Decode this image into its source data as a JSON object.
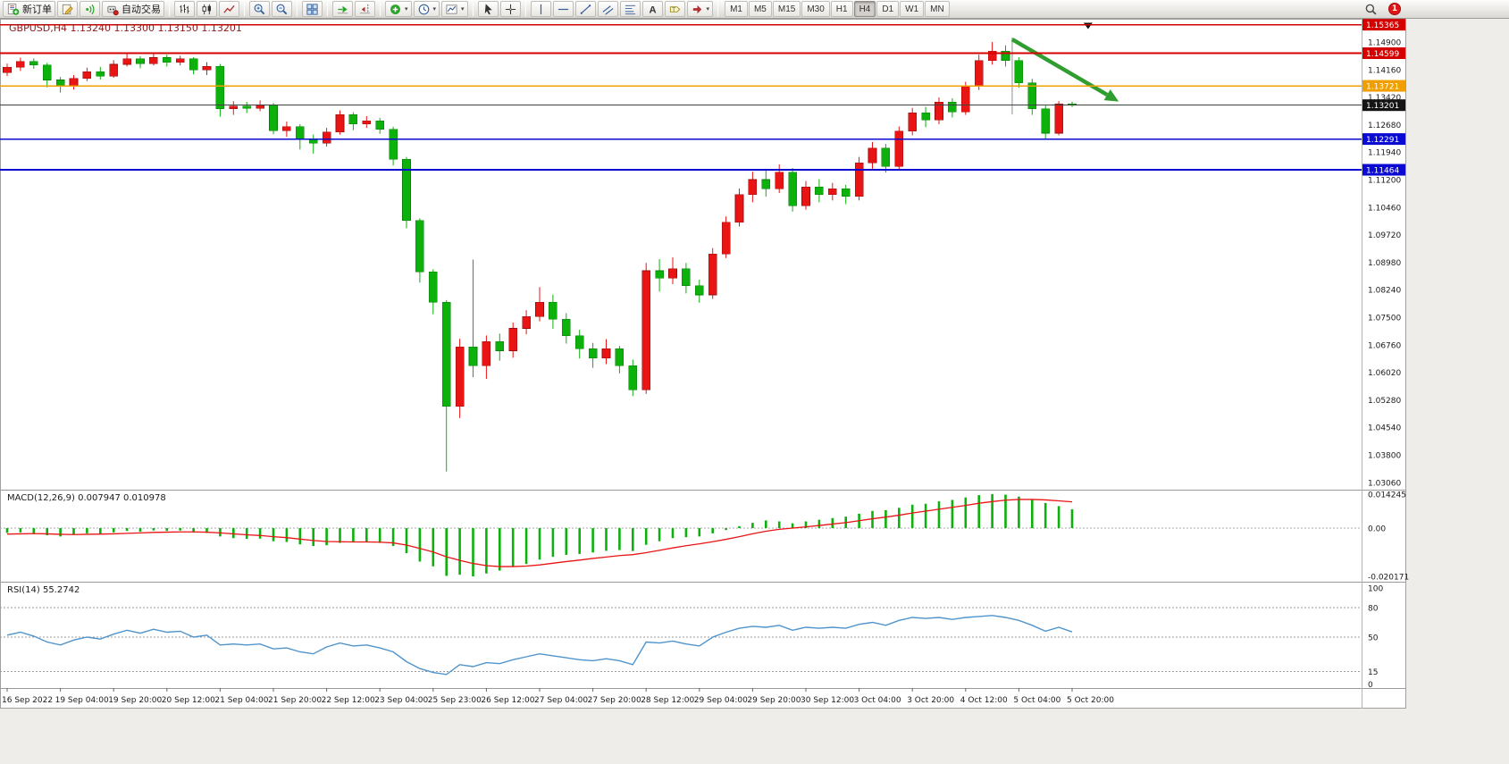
{
  "toolbar": {
    "new_order_label": "新订单",
    "autotrading_label": "自动交易",
    "timeframes": [
      "M1",
      "M5",
      "M15",
      "M30",
      "H1",
      "H4",
      "D1",
      "W1",
      "MN"
    ],
    "active_timeframe": "H4",
    "notification_count": "1",
    "icon_names": [
      "new-order",
      "metaeditor",
      "signals",
      "autotrading",
      "bar-chart",
      "candlestick-chart",
      "line-chart",
      "zoom-in",
      "zoom-out",
      "tile-windows",
      "auto-scroll",
      "chart-shift",
      "add-indicator",
      "periods",
      "templates",
      "cursor",
      "crosshair",
      "vertical-line",
      "horizontal-line",
      "trendline",
      "equidistant-channel",
      "fibonacci-retracement",
      "text",
      "text-label",
      "arrows",
      "search"
    ]
  },
  "chart": {
    "title": "GBPUSD,H4 1.13240 1.13300 1.13150 1.13201",
    "symbol": "GBPUSD",
    "period": "H4",
    "open": "1.13240",
    "high": "1.13300",
    "low": "1.13150",
    "close": "1.13201"
  },
  "chart_data": {
    "type": "candlestick",
    "symbol": "GBPUSD",
    "timeframe": "H4",
    "up_color": "#e91414",
    "down_color": "#0cb10c",
    "price_axis_labels": [
      "1.14900",
      "1.14160",
      "1.13420",
      "1.12680",
      "1.11940",
      "1.11200",
      "1.10460",
      "1.09720",
      "1.08980",
      "1.08240",
      "1.07500",
      "1.06760",
      "1.06020",
      "1.05280",
      "1.04540",
      "1.03800",
      "1.03060"
    ],
    "time_axis_labels": [
      "16 Sep 2022",
      "19 Sep 04:00",
      "19 Sep 20:00",
      "20 Sep 12:00",
      "21 Sep 04:00",
      "21 Sep 20:00",
      "22 Sep 12:00",
      "23 Sep 04:00",
      "25 Sep 23:00",
      "26 Sep 12:00",
      "27 Sep 04:00",
      "27 Sep 20:00",
      "28 Sep 12:00",
      "29 Sep 04:00",
      "29 Sep 20:00",
      "30 Sep 12:00",
      "3 Oct 04:00",
      "3 Oct 20:00",
      "4 Oct 12:00",
      "5 Oct 04:00",
      "5 Oct 20:00"
    ],
    "candles_ohlc": [
      [
        1.1408,
        1.1432,
        1.1398,
        1.1422
      ],
      [
        1.1422,
        1.1448,
        1.1412,
        1.1438
      ],
      [
        1.1438,
        1.1446,
        1.1418,
        1.1428
      ],
      [
        1.1428,
        1.1434,
        1.1368,
        1.1388
      ],
      [
        1.1388,
        1.1396,
        1.1354,
        1.137
      ],
      [
        1.137,
        1.1401,
        1.1362,
        1.1392
      ],
      [
        1.1392,
        1.1421,
        1.1385,
        1.141
      ],
      [
        1.141,
        1.1423,
        1.1389,
        1.1398
      ],
      [
        1.1398,
        1.1441,
        1.1394,
        1.143
      ],
      [
        1.143,
        1.1458,
        1.1424,
        1.1445
      ],
      [
        1.1445,
        1.1452,
        1.1419,
        1.1432
      ],
      [
        1.1432,
        1.1461,
        1.1427,
        1.1448
      ],
      [
        1.1448,
        1.1456,
        1.1424,
        1.1435
      ],
      [
        1.1435,
        1.1453,
        1.1427,
        1.1445
      ],
      [
        1.1445,
        1.1449,
        1.1403,
        1.1415
      ],
      [
        1.1415,
        1.1436,
        1.1401,
        1.1425
      ],
      [
        1.1425,
        1.1431,
        1.1289,
        1.131
      ],
      [
        1.131,
        1.1331,
        1.1294,
        1.1318
      ],
      [
        1.1318,
        1.1329,
        1.1299,
        1.1312
      ],
      [
        1.1312,
        1.1333,
        1.1304,
        1.132
      ],
      [
        1.132,
        1.1326,
        1.1242,
        1.1252
      ],
      [
        1.1252,
        1.1276,
        1.1235,
        1.1262
      ],
      [
        1.1262,
        1.1269,
        1.1201,
        1.123
      ],
      [
        1.123,
        1.1241,
        1.119,
        1.1218
      ],
      [
        1.1218,
        1.1259,
        1.1209,
        1.1248
      ],
      [
        1.1248,
        1.1306,
        1.1241,
        1.1295
      ],
      [
        1.1295,
        1.1301,
        1.1253,
        1.127
      ],
      [
        1.127,
        1.1291,
        1.1259,
        1.1278
      ],
      [
        1.1278,
        1.1286,
        1.1243,
        1.1255
      ],
      [
        1.1255,
        1.1262,
        1.1158,
        1.1175
      ],
      [
        1.1175,
        1.1181,
        1.0989,
        1.101
      ],
      [
        1.101,
        1.1016,
        1.0843,
        1.0872
      ],
      [
        1.0872,
        1.0879,
        1.0758,
        1.079
      ],
      [
        1.079,
        1.0796,
        1.0335,
        1.051
      ],
      [
        1.051,
        1.0692,
        1.0479,
        1.067
      ],
      [
        1.067,
        1.0905,
        1.0589,
        1.062
      ],
      [
        1.062,
        1.0701,
        1.0584,
        1.0685
      ],
      [
        1.0685,
        1.0706,
        1.0633,
        1.066
      ],
      [
        1.066,
        1.0736,
        1.0641,
        1.072
      ],
      [
        1.072,
        1.0769,
        1.0704,
        1.0752
      ],
      [
        1.0752,
        1.0831,
        1.0739,
        1.079
      ],
      [
        1.079,
        1.0811,
        1.0719,
        1.0745
      ],
      [
        1.0745,
        1.0761,
        1.0679,
        1.07
      ],
      [
        1.07,
        1.0716,
        1.0639,
        1.0665
      ],
      [
        1.0665,
        1.0681,
        1.0614,
        1.064
      ],
      [
        1.064,
        1.0691,
        1.0624,
        1.0665
      ],
      [
        1.0665,
        1.0673,
        1.0599,
        1.062
      ],
      [
        1.062,
        1.0636,
        1.0538,
        1.0555
      ],
      [
        1.0555,
        1.0896,
        1.0544,
        1.0875
      ],
      [
        1.0875,
        1.0906,
        1.0819,
        1.0855
      ],
      [
        1.0855,
        1.0911,
        1.0839,
        1.088
      ],
      [
        1.088,
        1.0896,
        1.0814,
        1.0835
      ],
      [
        1.0835,
        1.0851,
        1.0789,
        1.081
      ],
      [
        1.081,
        1.0936,
        1.0799,
        1.092
      ],
      [
        1.092,
        1.1021,
        1.0909,
        1.1005
      ],
      [
        1.1005,
        1.1096,
        1.0994,
        1.108
      ],
      [
        1.108,
        1.1141,
        1.1059,
        1.112
      ],
      [
        1.112,
        1.1146,
        1.1074,
        1.1095
      ],
      [
        1.1095,
        1.1161,
        1.1084,
        1.114
      ],
      [
        1.114,
        1.1151,
        1.1034,
        1.105
      ],
      [
        1.105,
        1.1116,
        1.1039,
        1.11
      ],
      [
        1.11,
        1.1121,
        1.1059,
        1.108
      ],
      [
        1.108,
        1.1111,
        1.1064,
        1.1095
      ],
      [
        1.1095,
        1.1106,
        1.1054,
        1.1075
      ],
      [
        1.1075,
        1.1181,
        1.1064,
        1.1165
      ],
      [
        1.1165,
        1.1221,
        1.1149,
        1.1205
      ],
      [
        1.1205,
        1.1216,
        1.1139,
        1.1155
      ],
      [
        1.1155,
        1.1263,
        1.1147,
        1.125
      ],
      [
        1.125,
        1.1313,
        1.1239,
        1.13
      ],
      [
        1.13,
        1.1316,
        1.1261,
        1.128
      ],
      [
        1.128,
        1.1341,
        1.1269,
        1.1328
      ],
      [
        1.1328,
        1.1339,
        1.1287,
        1.1302
      ],
      [
        1.1302,
        1.1383,
        1.1294,
        1.137
      ],
      [
        1.137,
        1.1456,
        1.1361,
        1.144
      ],
      [
        1.144,
        1.149,
        1.1429,
        1.1465
      ],
      [
        1.1465,
        1.1481,
        1.1424,
        1.144
      ],
      [
        1.144,
        1.1449,
        1.1367,
        1.138
      ],
      [
        1.138,
        1.1391,
        1.1294,
        1.131
      ],
      [
        1.131,
        1.1319,
        1.1228,
        1.1245
      ],
      [
        1.1245,
        1.1331,
        1.1239,
        1.1323
      ],
      [
        1.1324,
        1.133,
        1.1315,
        1.13201
      ]
    ],
    "horizontal_lines": [
      {
        "price": 1.15365,
        "label": "1.15365",
        "color": "#d40000"
      },
      {
        "price": 1.14599,
        "label": "1.14599",
        "color": "#d40000"
      },
      {
        "price": 1.13721,
        "label": "1.13721",
        "color": "#efa000"
      },
      {
        "price": 1.12291,
        "label": "1.12291",
        "color": "#0a0ad2"
      },
      {
        "price": 1.11464,
        "label": "1.11464",
        "color": "#0a0ad2"
      }
    ],
    "bid_line": {
      "price": 1.13201,
      "label": "1.13201",
      "color": "#404040",
      "tag_color": "#141414"
    },
    "annotations": {
      "trend_arrow": {
        "from_index": 75.5,
        "from_price": 1.1497,
        "to_index": 83.5,
        "to_price": 1.133,
        "color": "#2f9e2f"
      },
      "vertical_line": {
        "index": 75.5,
        "top_price": 1.1502,
        "bottom_price": 1.1295,
        "color": "#909090"
      },
      "top_marker": {
        "index": 81.2,
        "price": 1.1532,
        "color": "#111111"
      }
    },
    "macd": {
      "label": "MACD(12,26,9) 0.007947 0.010978",
      "histogram_color": "#0cb10c",
      "signal_color": "#e91414",
      "scale_labels": [
        "0.014245",
        "0.00",
        "-0.020171"
      ],
      "scale_values": [
        0.014245,
        0,
        -0.020171
      ],
      "histogram": [
        -0.002,
        -0.0018,
        -0.0022,
        -0.003,
        -0.0035,
        -0.0028,
        -0.0022,
        -0.0025,
        -0.0018,
        -0.0012,
        -0.0015,
        -0.001,
        -0.0012,
        -0.001,
        -0.0018,
        -0.002,
        -0.0035,
        -0.0042,
        -0.0045,
        -0.0044,
        -0.0055,
        -0.0058,
        -0.0068,
        -0.0075,
        -0.0072,
        -0.0062,
        -0.006,
        -0.0058,
        -0.0062,
        -0.0075,
        -0.0105,
        -0.014,
        -0.016,
        -0.02,
        -0.0195,
        -0.0202,
        -0.019,
        -0.0178,
        -0.0162,
        -0.015,
        -0.0132,
        -0.012,
        -0.0112,
        -0.0108,
        -0.0102,
        -0.0095,
        -0.0092,
        -0.0096,
        -0.007,
        -0.0055,
        -0.0042,
        -0.0038,
        -0.0035,
        -0.0022,
        -0.0008,
        0.0008,
        0.0022,
        0.0032,
        0.0028,
        0.002,
        0.0028,
        0.0035,
        0.0042,
        0.0048,
        0.006,
        0.0072,
        0.0075,
        0.0085,
        0.0098,
        0.0102,
        0.0112,
        0.0118,
        0.0128,
        0.0138,
        0.0142,
        0.014,
        0.0132,
        0.012,
        0.0105,
        0.0092,
        0.0079
      ],
      "signal": [
        -0.0025,
        -0.0024,
        -0.0023,
        -0.0024,
        -0.0026,
        -0.0027,
        -0.0026,
        -0.0025,
        -0.0024,
        -0.0022,
        -0.002,
        -0.0018,
        -0.0017,
        -0.0016,
        -0.0016,
        -0.0017,
        -0.002,
        -0.0024,
        -0.0028,
        -0.0031,
        -0.0036,
        -0.004,
        -0.0046,
        -0.0052,
        -0.0056,
        -0.0057,
        -0.0058,
        -0.0058,
        -0.0059,
        -0.0062,
        -0.0071,
        -0.0085,
        -0.01,
        -0.012,
        -0.0135,
        -0.0148,
        -0.0157,
        -0.0161,
        -0.0161,
        -0.0159,
        -0.0154,
        -0.0147,
        -0.014,
        -0.0134,
        -0.0127,
        -0.0121,
        -0.0115,
        -0.0111,
        -0.0103,
        -0.0093,
        -0.0083,
        -0.0074,
        -0.0066,
        -0.0057,
        -0.0047,
        -0.0036,
        -0.0024,
        -0.0013,
        -0.0005,
        0.0,
        0.0005,
        0.0011,
        0.0017,
        0.0023,
        0.0031,
        0.0039,
        0.0046,
        0.0054,
        0.0063,
        0.0071,
        0.0079,
        0.0087,
        0.0095,
        0.0104,
        0.0111,
        0.0117,
        0.012,
        0.012,
        0.0118,
        0.0114,
        0.011
      ]
    },
    "rsi": {
      "label": "RSI(14) 55.2742",
      "line_color": "#4f94cd",
      "scale_labels": [
        "100",
        "80",
        "50",
        "15",
        "0"
      ],
      "scale_values": [
        100,
        80,
        50,
        15,
        0
      ],
      "levels": [
        80,
        50,
        15
      ],
      "values": [
        52,
        55,
        51,
        45,
        42,
        47,
        50,
        48,
        53,
        57,
        54,
        58,
        55,
        56,
        50,
        52,
        42,
        43,
        42,
        43,
        38,
        39,
        35,
        33,
        40,
        44,
        41,
        42,
        39,
        35,
        25,
        18,
        14,
        12,
        22,
        20,
        24,
        23,
        27,
        30,
        33,
        31,
        29,
        27,
        26,
        28,
        26,
        22,
        45,
        44,
        46,
        43,
        41,
        50,
        55,
        59,
        61,
        60,
        62,
        57,
        60,
        59,
        60,
        59,
        63,
        65,
        62,
        67,
        70,
        69,
        70,
        68,
        70,
        71,
        72,
        70,
        67,
        62,
        56,
        60,
        55.27
      ]
    }
  }
}
